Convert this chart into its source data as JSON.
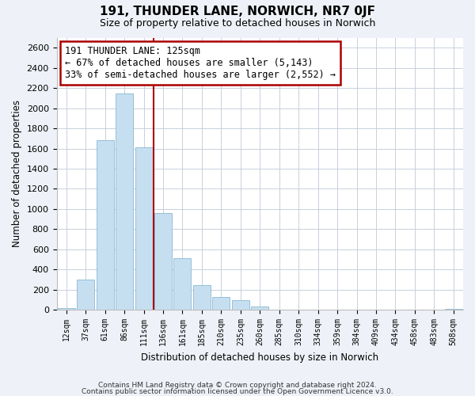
{
  "title": "191, THUNDER LANE, NORWICH, NR7 0JF",
  "subtitle": "Size of property relative to detached houses in Norwich",
  "xlabel": "Distribution of detached houses by size in Norwich",
  "ylabel": "Number of detached properties",
  "bar_labels": [
    "12sqm",
    "37sqm",
    "61sqm",
    "86sqm",
    "111sqm",
    "136sqm",
    "161sqm",
    "185sqm",
    "210sqm",
    "235sqm",
    "260sqm",
    "285sqm",
    "310sqm",
    "334sqm",
    "359sqm",
    "384sqm",
    "409sqm",
    "434sqm",
    "458sqm",
    "483sqm",
    "508sqm"
  ],
  "bar_values": [
    20,
    300,
    1680,
    2150,
    1610,
    960,
    510,
    245,
    125,
    95,
    30,
    5,
    5,
    5,
    5,
    5,
    5,
    5,
    5,
    5,
    10
  ],
  "bar_color": "#c6dff0",
  "bar_edge_color": "#8ab8d4",
  "vline_index": 4.5,
  "property_value": "125sqm",
  "pct_smaller": "67%",
  "n_smaller": "5,143",
  "pct_larger": "33%",
  "n_larger": "2,552",
  "annotation_box_facecolor": "#ffffff",
  "annotation_box_edgecolor": "#aa0000",
  "vline_color": "#aa0000",
  "ylim": [
    0,
    2700
  ],
  "yticks": [
    0,
    200,
    400,
    600,
    800,
    1000,
    1200,
    1400,
    1600,
    1800,
    2000,
    2200,
    2400,
    2600
  ],
  "footer1": "Contains HM Land Registry data © Crown copyright and database right 2024.",
  "footer2": "Contains public sector information licensed under the Open Government Licence v3.0.",
  "bg_color": "#eef2f8",
  "plot_bg_color": "#ffffff",
  "grid_color": "#c8d0dc"
}
